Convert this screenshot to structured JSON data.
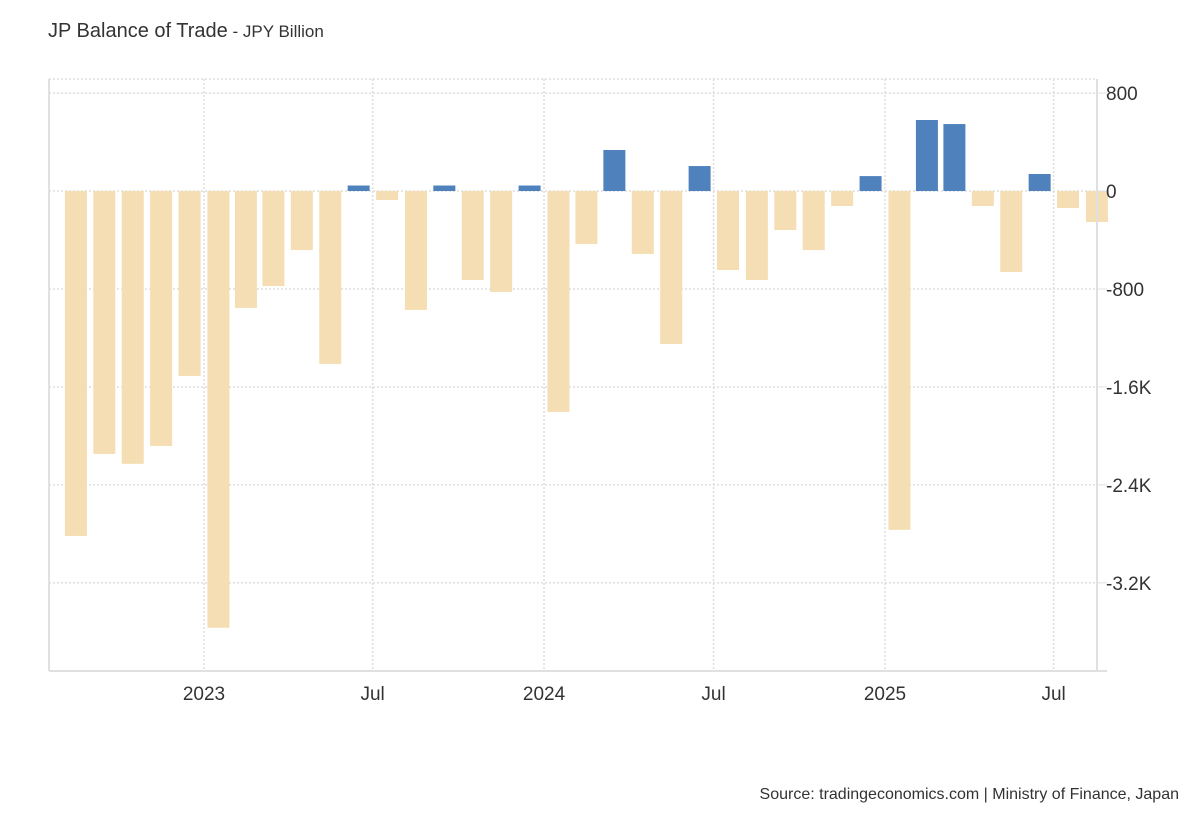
{
  "header": {
    "title": "JP Balance of Trade",
    "subtitle": " - JPY Billion"
  },
  "footer": {
    "source": "Source: tradingeconomics.com | Ministry of Finance, Japan"
  },
  "colors": {
    "positive": "#4f81bd",
    "negative": "#f5deb3",
    "grid": "#dddddd",
    "axis": "#e0e0e0"
  },
  "chart_data": {
    "type": "bar",
    "title": "JP Balance of Trade",
    "subtitle": "JPY Billion",
    "xlabel": "",
    "ylabel": "",
    "ylim": [
      -3920,
      915
    ],
    "grid": true,
    "legend": "none",
    "y_axis_position": "right",
    "y_ticks": [
      {
        "value": 800,
        "label": "800"
      },
      {
        "value": 0,
        "label": "0"
      },
      {
        "value": -800,
        "label": "-800"
      },
      {
        "value": -1600,
        "label": "-1.6K"
      },
      {
        "value": -2400,
        "label": "-2.4K"
      },
      {
        "value": -3200,
        "label": "-3.2K"
      }
    ],
    "x_ticks": [
      {
        "month_index": 5,
        "label": "2023"
      },
      {
        "month_index": 11,
        "label": "Jul"
      },
      {
        "month_index": 17,
        "label": "2024"
      },
      {
        "month_index": 23,
        "label": "Jul"
      },
      {
        "month_index": 29,
        "label": "2025"
      },
      {
        "month_index": 35,
        "label": "Jul"
      }
    ],
    "categories": [
      "2022-08",
      "2022-09",
      "2022-10",
      "2022-11",
      "2022-12",
      "2023-01",
      "2023-02",
      "2023-03",
      "2023-04",
      "2023-05",
      "2023-06",
      "2023-07",
      "2023-08",
      "2023-09",
      "2023-10",
      "2023-11",
      "2023-12",
      "2024-01",
      "2024-02",
      "2024-03",
      "2024-04",
      "2024-05",
      "2024-06",
      "2024-07",
      "2024-08",
      "2024-09",
      "2024-10",
      "2024-11",
      "2024-12",
      "2025-01",
      "2025-02",
      "2025-03",
      "2025-04",
      "2025-05",
      "2025-06",
      "2025-07",
      "2025-08"
    ],
    "series": [
      {
        "name": "Balance of Trade",
        "values": [
          -2817,
          -2147,
          -2228,
          -2082,
          -1510,
          -3567,
          -955,
          -776,
          -482,
          -1412,
          45,
          -73,
          -971,
          45,
          -727,
          -824,
          45,
          -1804,
          -433,
          335,
          -514,
          -1249,
          204,
          -645,
          -727,
          -318,
          -482,
          -122,
          122,
          -2767,
          580,
          547,
          -122,
          -661,
          139,
          -139,
          -253
        ]
      }
    ]
  }
}
